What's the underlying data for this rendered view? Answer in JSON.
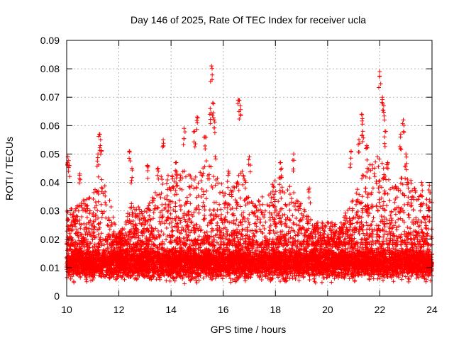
{
  "chart_data": {
    "type": "scatter",
    "title": "Day 146 of 2025, Rate Of TEC Index for receiver ucla",
    "xlabel": "GPS time / hours",
    "ylabel": "ROTI / TECUs",
    "xlim": [
      10,
      24
    ],
    "ylim": [
      0,
      0.09
    ],
    "xticks": [
      10,
      12,
      14,
      16,
      18,
      20,
      22,
      24
    ],
    "xtick_labels": [
      "10",
      "12",
      "14",
      "16",
      "18",
      "20",
      "22",
      "24"
    ],
    "yticks": [
      0,
      0.01,
      0.02,
      0.03,
      0.04,
      0.05,
      0.06,
      0.07,
      0.08,
      0.09
    ],
    "ytick_labels": [
      "0",
      "0.01",
      "0.02",
      "0.03",
      "0.04",
      "0.05",
      "0.06",
      "0.07",
      "0.08",
      "0.09"
    ],
    "grid": true,
    "marker": "+",
    "colors": {
      "points": "#ff0000",
      "grid": "#a0a0a0",
      "axis": "#000000"
    },
    "series": [
      {
        "name": "ROTI",
        "base_band": {
          "x_range": [
            10,
            24
          ],
          "y_range": [
            0.004,
            0.02
          ],
          "typical": 0.012
        },
        "peaks": [
          {
            "x": 10.05,
            "y": 0.049
          },
          {
            "x": 10.1,
            "y": 0.046
          },
          {
            "x": 10.5,
            "y": 0.043
          },
          {
            "x": 11.25,
            "y": 0.057
          },
          {
            "x": 11.3,
            "y": 0.055
          },
          {
            "x": 11.2,
            "y": 0.05
          },
          {
            "x": 12.4,
            "y": 0.051
          },
          {
            "x": 12.5,
            "y": 0.045
          },
          {
            "x": 13.1,
            "y": 0.046
          },
          {
            "x": 13.5,
            "y": 0.045
          },
          {
            "x": 13.7,
            "y": 0.055
          },
          {
            "x": 14.2,
            "y": 0.047
          },
          {
            "x": 14.5,
            "y": 0.059
          },
          {
            "x": 14.9,
            "y": 0.058
          },
          {
            "x": 15.0,
            "y": 0.063
          },
          {
            "x": 15.3,
            "y": 0.056
          },
          {
            "x": 15.5,
            "y": 0.066
          },
          {
            "x": 15.55,
            "y": 0.081
          },
          {
            "x": 15.6,
            "y": 0.068
          },
          {
            "x": 15.65,
            "y": 0.062
          },
          {
            "x": 16.2,
            "y": 0.044
          },
          {
            "x": 16.6,
            "y": 0.069
          },
          {
            "x": 16.65,
            "y": 0.067
          },
          {
            "x": 17.0,
            "y": 0.049
          },
          {
            "x": 18.2,
            "y": 0.047
          },
          {
            "x": 18.7,
            "y": 0.05
          },
          {
            "x": 19.3,
            "y": 0.038
          },
          {
            "x": 20.9,
            "y": 0.051
          },
          {
            "x": 21.2,
            "y": 0.055
          },
          {
            "x": 21.3,
            "y": 0.064
          },
          {
            "x": 21.35,
            "y": 0.058
          },
          {
            "x": 21.5,
            "y": 0.053
          },
          {
            "x": 22.0,
            "y": 0.079
          },
          {
            "x": 22.1,
            "y": 0.07
          },
          {
            "x": 22.15,
            "y": 0.067
          },
          {
            "x": 22.2,
            "y": 0.058
          },
          {
            "x": 22.3,
            "y": 0.047
          },
          {
            "x": 22.8,
            "y": 0.057
          },
          {
            "x": 22.9,
            "y": 0.062
          },
          {
            "x": 23.0,
            "y": 0.05
          },
          {
            "x": 23.6,
            "y": 0.04
          },
          {
            "x": 23.9,
            "y": 0.039
          }
        ],
        "activity_envelope": [
          {
            "x": 10,
            "y": 0.03
          },
          {
            "x": 11,
            "y": 0.036
          },
          {
            "x": 11.3,
            "y": 0.045
          },
          {
            "x": 12,
            "y": 0.022
          },
          {
            "x": 12.5,
            "y": 0.033
          },
          {
            "x": 13,
            "y": 0.03
          },
          {
            "x": 13.6,
            "y": 0.042
          },
          {
            "x": 14.4,
            "y": 0.045
          },
          {
            "x": 15,
            "y": 0.042
          },
          {
            "x": 15.6,
            "y": 0.052
          },
          {
            "x": 16.2,
            "y": 0.036
          },
          {
            "x": 16.7,
            "y": 0.045
          },
          {
            "x": 17.2,
            "y": 0.032
          },
          {
            "x": 18.2,
            "y": 0.043
          },
          {
            "x": 18.8,
            "y": 0.036
          },
          {
            "x": 19.5,
            "y": 0.026
          },
          {
            "x": 20.5,
            "y": 0.026
          },
          {
            "x": 21,
            "y": 0.036
          },
          {
            "x": 21.4,
            "y": 0.044
          },
          {
            "x": 22,
            "y": 0.05
          },
          {
            "x": 22.5,
            "y": 0.038
          },
          {
            "x": 23,
            "y": 0.045
          },
          {
            "x": 23.5,
            "y": 0.036
          },
          {
            "x": 24,
            "y": 0.036
          }
        ]
      }
    ]
  }
}
